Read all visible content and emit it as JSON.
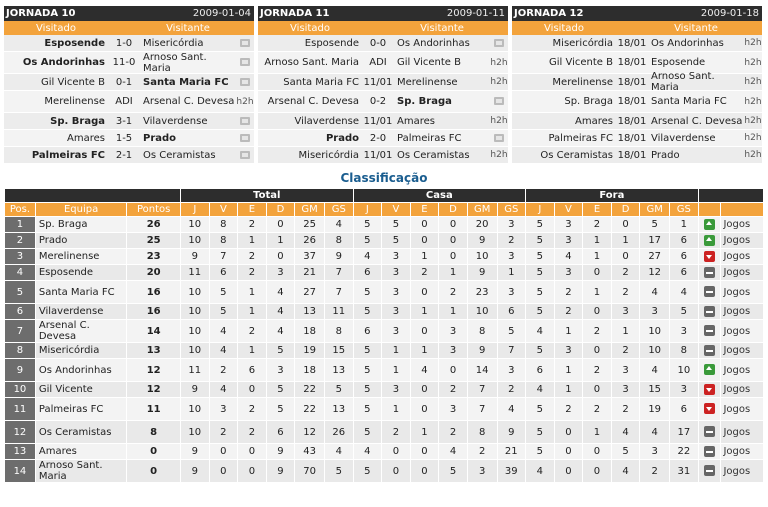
{
  "rounds": [
    {
      "title": "JORNADA 10",
      "date": "2009-01-04",
      "col_home": "Visitado",
      "col_away": "Visitante",
      "matches": [
        {
          "home": "Esposende",
          "score": "1-0",
          "away": "Misericórdia",
          "extra": "tv",
          "home_bold": true,
          "away_bold": false
        },
        {
          "home": "Os Andorinhas",
          "score": "11-0",
          "away": "Arnoso Sant. Maria",
          "extra": "tv",
          "home_bold": true,
          "away_bold": false
        },
        {
          "home": "Gil Vicente B",
          "score": "0-1",
          "away": "Santa Maria FC",
          "extra": "tv",
          "home_bold": false,
          "away_bold": true
        },
        {
          "home": "Merelinense",
          "score": "ADI",
          "away": "Arsenal C. Devesa",
          "extra": "h2h",
          "home_bold": false,
          "away_bold": false
        },
        {
          "home": "Sp. Braga",
          "score": "3-1",
          "away": "Vilaverdense",
          "extra": "tv",
          "home_bold": true,
          "away_bold": false
        },
        {
          "home": "Amares",
          "score": "1-5",
          "away": "Prado",
          "extra": "tv",
          "home_bold": false,
          "away_bold": true
        },
        {
          "home": "Palmeiras FC",
          "score": "2-1",
          "away": "Os Ceramistas",
          "extra": "tv",
          "home_bold": true,
          "away_bold": false
        }
      ]
    },
    {
      "title": "JORNADA 11",
      "date": "2009-01-11",
      "col_home": "Visitado",
      "col_away": "Visitante",
      "matches": [
        {
          "home": "Esposende",
          "score": "0-0",
          "away": "Os Andorinhas",
          "extra": "tv",
          "home_bold": false,
          "away_bold": false
        },
        {
          "home": "Arnoso Sant. Maria",
          "score": "ADI",
          "away": "Gil Vicente B",
          "extra": "h2h",
          "home_bold": false,
          "away_bold": false
        },
        {
          "home": "Santa Maria FC",
          "score": "11/01",
          "away": "Merelinense",
          "extra": "h2h",
          "home_bold": false,
          "away_bold": false
        },
        {
          "home": "Arsenal C. Devesa",
          "score": "0-2",
          "away": "Sp. Braga",
          "extra": "tv",
          "home_bold": false,
          "away_bold": true
        },
        {
          "home": "Vilaverdense",
          "score": "11/01",
          "away": "Amares",
          "extra": "h2h",
          "home_bold": false,
          "away_bold": false
        },
        {
          "home": "Prado",
          "score": "2-0",
          "away": "Palmeiras FC",
          "extra": "tv",
          "home_bold": true,
          "away_bold": false
        },
        {
          "home": "Misericórdia",
          "score": "11/01",
          "away": "Os Ceramistas",
          "extra": "h2h",
          "home_bold": false,
          "away_bold": false
        }
      ]
    },
    {
      "title": "JORNADA 12",
      "date": "2009-01-18",
      "col_home": "Visitado",
      "col_away": "Visitante",
      "matches": [
        {
          "home": "Misericórdia",
          "score": "18/01",
          "away": "Os Andorinhas",
          "extra": "h2h",
          "home_bold": false,
          "away_bold": false
        },
        {
          "home": "Gil Vicente B",
          "score": "18/01",
          "away": "Esposende",
          "extra": "h2h",
          "home_bold": false,
          "away_bold": false
        },
        {
          "home": "Merelinense",
          "score": "18/01",
          "away": "Arnoso Sant. Maria",
          "extra": "h2h",
          "home_bold": false,
          "away_bold": false
        },
        {
          "home": "Sp. Braga",
          "score": "18/01",
          "away": "Santa Maria FC",
          "extra": "h2h",
          "home_bold": false,
          "away_bold": false
        },
        {
          "home": "Amares",
          "score": "18/01",
          "away": "Arsenal C. Devesa",
          "extra": "h2h",
          "home_bold": false,
          "away_bold": false
        },
        {
          "home": "Palmeiras FC",
          "score": "18/01",
          "away": "Vilaverdense",
          "extra": "h2h",
          "home_bold": false,
          "away_bold": false
        },
        {
          "home": "Os Ceramistas",
          "score": "18/01",
          "away": "Prado",
          "extra": "h2h",
          "home_bold": false,
          "away_bold": false
        }
      ]
    }
  ],
  "standings": {
    "title": "Classificação",
    "groups": {
      "total": "Total",
      "home": "Casa",
      "away": "Fora"
    },
    "headers": [
      "Pos.",
      "Equipa",
      "Pontos",
      "J",
      "V",
      "E",
      "D",
      "GM",
      "GS",
      "J",
      "V",
      "E",
      "D",
      "GM",
      "GS",
      "J",
      "V",
      "E",
      "D",
      "GM",
      "GS"
    ],
    "games_label": "Jogos",
    "rows": [
      {
        "pos": "1",
        "team": "Sp. Braga",
        "pts": "26",
        "t": [
          "10",
          "8",
          "2",
          "0",
          "25",
          "4"
        ],
        "h": [
          "5",
          "5",
          "0",
          "0",
          "20",
          "3"
        ],
        "a": [
          "5",
          "3",
          "2",
          "0",
          "5",
          "1"
        ],
        "trend": "up"
      },
      {
        "pos": "2",
        "team": "Prado",
        "pts": "25",
        "t": [
          "10",
          "8",
          "1",
          "1",
          "26",
          "8"
        ],
        "h": [
          "5",
          "5",
          "0",
          "0",
          "9",
          "2"
        ],
        "a": [
          "5",
          "3",
          "1",
          "1",
          "17",
          "6"
        ],
        "trend": "up"
      },
      {
        "pos": "3",
        "team": "Merelinense",
        "pts": "23",
        "t": [
          "9",
          "7",
          "2",
          "0",
          "37",
          "9"
        ],
        "h": [
          "4",
          "3",
          "1",
          "0",
          "10",
          "3"
        ],
        "a": [
          "5",
          "4",
          "1",
          "0",
          "27",
          "6"
        ],
        "trend": "down"
      },
      {
        "pos": "4",
        "team": "Esposende",
        "pts": "20",
        "t": [
          "11",
          "6",
          "2",
          "3",
          "21",
          "7"
        ],
        "h": [
          "6",
          "3",
          "2",
          "1",
          "9",
          "1"
        ],
        "a": [
          "5",
          "3",
          "0",
          "2",
          "12",
          "6"
        ],
        "trend": "eq"
      },
      {
        "pos": "5",
        "team": "Santa Maria FC",
        "pts": "16",
        "t": [
          "10",
          "5",
          "1",
          "4",
          "27",
          "7"
        ],
        "h": [
          "5",
          "3",
          "0",
          "2",
          "23",
          "3"
        ],
        "a": [
          "5",
          "2",
          "1",
          "2",
          "4",
          "4"
        ],
        "trend": "eq"
      },
      {
        "pos": "6",
        "team": "Vilaverdense",
        "pts": "16",
        "t": [
          "10",
          "5",
          "1",
          "4",
          "13",
          "11"
        ],
        "h": [
          "5",
          "3",
          "1",
          "1",
          "10",
          "6"
        ],
        "a": [
          "5",
          "2",
          "0",
          "3",
          "3",
          "5"
        ],
        "trend": "eq"
      },
      {
        "pos": "7",
        "team": "Arsenal C. Devesa",
        "pts": "14",
        "t": [
          "10",
          "4",
          "2",
          "4",
          "18",
          "8"
        ],
        "h": [
          "6",
          "3",
          "0",
          "3",
          "8",
          "5"
        ],
        "a": [
          "4",
          "1",
          "2",
          "1",
          "10",
          "3"
        ],
        "trend": "eq"
      },
      {
        "pos": "8",
        "team": "Misericórdia",
        "pts": "13",
        "t": [
          "10",
          "4",
          "1",
          "5",
          "19",
          "15"
        ],
        "h": [
          "5",
          "1",
          "1",
          "3",
          "9",
          "7"
        ],
        "a": [
          "5",
          "3",
          "0",
          "2",
          "10",
          "8"
        ],
        "trend": "eq"
      },
      {
        "pos": "9",
        "team": "Os Andorinhas",
        "pts": "12",
        "t": [
          "11",
          "2",
          "6",
          "3",
          "18",
          "13"
        ],
        "h": [
          "5",
          "1",
          "4",
          "0",
          "14",
          "3"
        ],
        "a": [
          "6",
          "1",
          "2",
          "3",
          "4",
          "10"
        ],
        "trend": "up"
      },
      {
        "pos": "10",
        "team": "Gil Vicente",
        "pts": "12",
        "t": [
          "9",
          "4",
          "0",
          "5",
          "22",
          "5"
        ],
        "h": [
          "5",
          "3",
          "0",
          "2",
          "7",
          "2"
        ],
        "a": [
          "4",
          "1",
          "0",
          "3",
          "15",
          "3"
        ],
        "trend": "down"
      },
      {
        "pos": "11",
        "team": "Palmeiras FC",
        "pts": "11",
        "t": [
          "10",
          "3",
          "2",
          "5",
          "22",
          "13"
        ],
        "h": [
          "5",
          "1",
          "0",
          "3",
          "7",
          "4"
        ],
        "a": [
          "5",
          "2",
          "2",
          "2",
          "19",
          "6"
        ],
        "trend": "down"
      },
      {
        "pos": "12",
        "team": "Os Ceramistas",
        "pts": "8",
        "t": [
          "10",
          "2",
          "2",
          "6",
          "12",
          "26"
        ],
        "h": [
          "5",
          "2",
          "1",
          "2",
          "8",
          "9"
        ],
        "a": [
          "5",
          "0",
          "1",
          "4",
          "4",
          "17"
        ],
        "trend": "eq"
      },
      {
        "pos": "13",
        "team": "Amares",
        "pts": "0",
        "t": [
          "9",
          "0",
          "0",
          "9",
          "43",
          "4"
        ],
        "h": [
          "4",
          "0",
          "0",
          "4",
          "2",
          "21"
        ],
        "a": [
          "5",
          "0",
          "0",
          "5",
          "3",
          "22"
        ],
        "trend": "eq"
      },
      {
        "pos": "14",
        "team": "Arnoso Sant. Maria",
        "pts": "0",
        "t": [
          "9",
          "0",
          "0",
          "9",
          "70",
          "5"
        ],
        "h": [
          "5",
          "0",
          "0",
          "5",
          "3",
          "39"
        ],
        "a": [
          "4",
          "0",
          "0",
          "4",
          "2",
          "31"
        ],
        "trend": "eq"
      }
    ]
  }
}
